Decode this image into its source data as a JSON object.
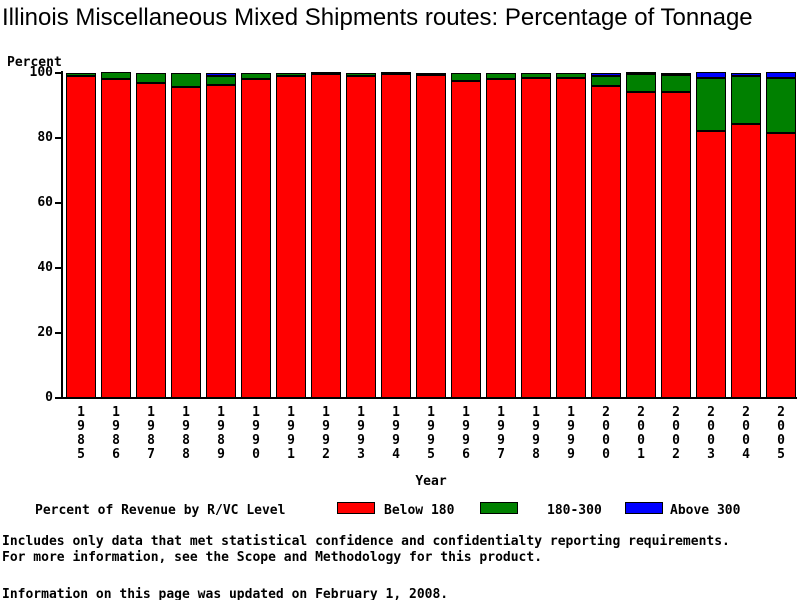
{
  "title": "Illinois Miscellaneous Mixed Shipments routes: Percentage of Tonnage",
  "chart_data": {
    "type": "bar",
    "stacked": true,
    "title": "Illinois Miscellaneous Mixed Shipments routes: Percentage of Tonnage",
    "ylabel": "Percent",
    "xlabel": "Year",
    "ylim": [
      0,
      100
    ],
    "yticks": [
      0,
      20,
      40,
      60,
      80,
      100
    ],
    "grid": false,
    "legend_position": "bottom",
    "legend_title": "Percent of Revenue by R/VC Level",
    "categories": [
      "1985",
      "1986",
      "1987",
      "1988",
      "1989",
      "1990",
      "1991",
      "1992",
      "1993",
      "1994",
      "1995",
      "1996",
      "1997",
      "1998",
      "1999",
      "2000",
      "2001",
      "2002",
      "2003",
      "2004",
      "2005"
    ],
    "series": [
      {
        "name": "Below 180",
        "color": "#ff0000",
        "values": [
          99.0,
          98.0,
          96.9,
          95.6,
          96.4,
          98.1,
          99.2,
          99.6,
          99.0,
          99.6,
          99.4,
          97.5,
          98.1,
          98.6,
          98.5,
          96.0,
          94.0,
          94.0,
          82.0,
          84.3,
          81.5
        ]
      },
      {
        "name": "180-300",
        "color": "#008000",
        "values": [
          1.0,
          2.0,
          3.1,
          4.4,
          2.8,
          1.9,
          0.8,
          0.4,
          1.0,
          0.4,
          0.6,
          2.5,
          1.9,
          1.4,
          1.5,
          3.1,
          5.5,
          5.3,
          16.3,
          14.7,
          16.8
        ]
      },
      {
        "name": "Above 300",
        "color": "#0000ff",
        "values": [
          0,
          0,
          0,
          0,
          0.8,
          0,
          0,
          0,
          0,
          0,
          0,
          0,
          0,
          0,
          0,
          0.9,
          0.5,
          0.7,
          1.7,
          1.0,
          1.7
        ]
      }
    ]
  },
  "footer": {
    "note_line1": "Includes only data that met statistical confidence and confidentialty reporting requirements.",
    "note_line2": "For more information, see the Scope and Methodology for this product.",
    "updated": "Information on this page was updated on February 1, 2008."
  },
  "colors": {
    "below_180": "#ff0000",
    "range_180_300": "#008000",
    "above_300": "#0000ff",
    "axis": "#000000",
    "background": "#ffffff"
  }
}
